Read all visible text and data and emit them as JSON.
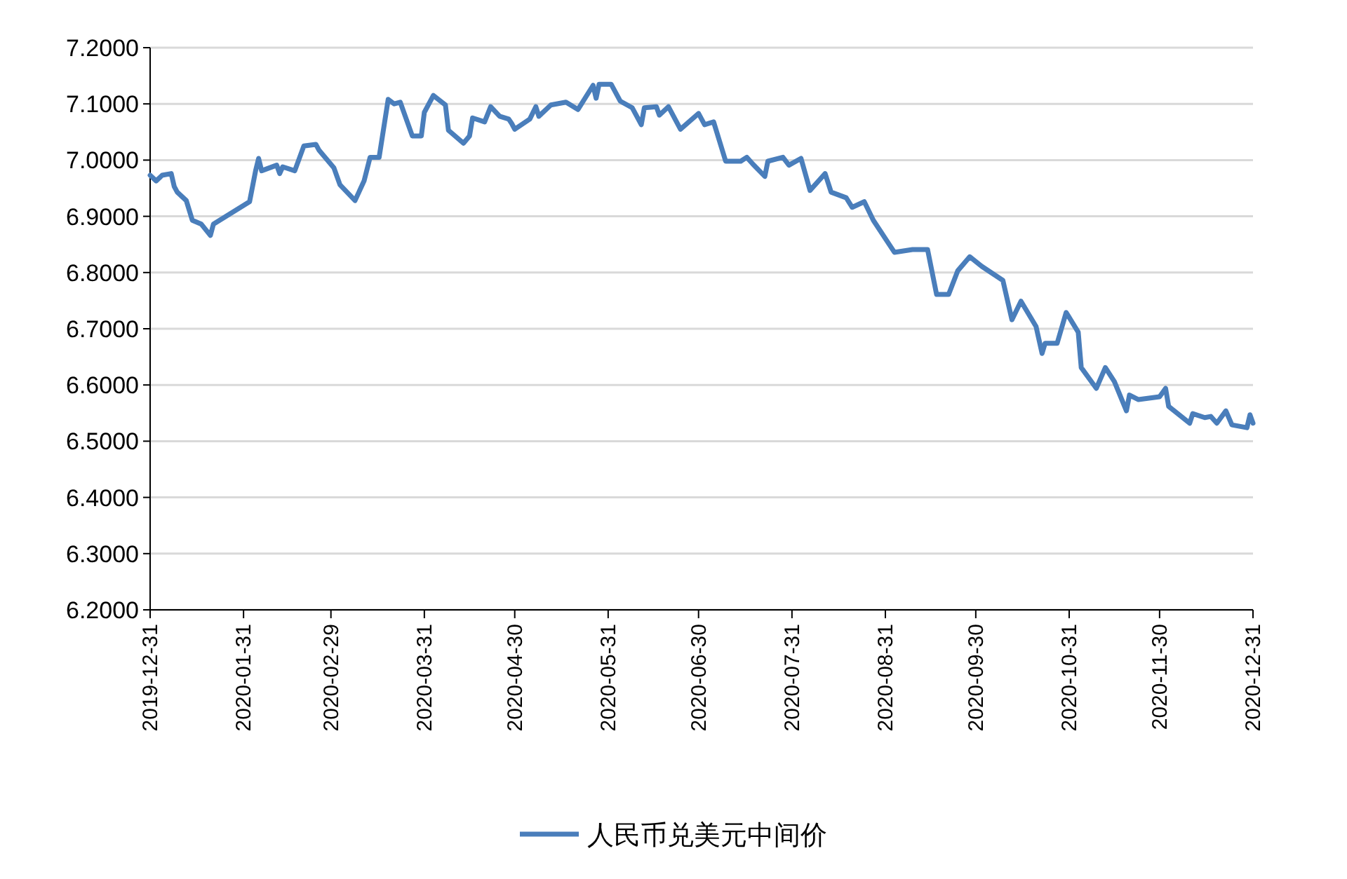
{
  "chart_data": {
    "type": "line",
    "x": [
      "2019-12-31",
      "2020-01-02",
      "2020-01-04",
      "2020-01-07",
      "2020-01-08",
      "2020-01-09",
      "2020-01-12",
      "2020-01-14",
      "2020-01-17",
      "2020-01-20",
      "2020-01-21",
      "2020-02-02",
      "2020-02-04",
      "2020-02-05",
      "2020-02-06",
      "2020-02-11",
      "2020-02-12",
      "2020-02-13",
      "2020-02-17",
      "2020-02-20",
      "2020-02-24",
      "2020-02-25",
      "2020-03-01",
      "2020-03-03",
      "2020-03-08",
      "2020-03-11",
      "2020-03-13",
      "2020-03-16",
      "2020-03-19",
      "2020-03-21",
      "2020-03-23",
      "2020-03-25",
      "2020-03-27",
      "2020-03-30",
      "2020-03-31",
      "2020-04-03",
      "2020-04-07",
      "2020-04-08",
      "2020-04-13",
      "2020-04-15",
      "2020-04-16",
      "2020-04-20",
      "2020-04-22",
      "2020-04-25",
      "2020-04-28",
      "2020-04-29",
      "2020-04-30",
      "2020-05-05",
      "2020-05-07",
      "2020-05-08",
      "2020-05-12",
      "2020-05-17",
      "2020-05-21",
      "2020-05-26",
      "2020-05-27",
      "2020-05-28",
      "2020-06-01",
      "2020-06-04",
      "2020-06-08",
      "2020-06-11",
      "2020-06-12",
      "2020-06-16",
      "2020-06-17",
      "2020-06-20",
      "2020-06-24",
      "2020-06-30",
      "2020-07-02",
      "2020-07-05",
      "2020-07-09",
      "2020-07-14",
      "2020-07-16",
      "2020-07-18",
      "2020-07-22",
      "2020-07-23",
      "2020-07-28",
      "2020-07-30",
      "2020-08-03",
      "2020-08-06",
      "2020-08-11",
      "2020-08-13",
      "2020-08-18",
      "2020-08-20",
      "2020-08-24",
      "2020-08-27",
      "2020-09-03",
      "2020-09-09",
      "2020-09-14",
      "2020-09-17",
      "2020-09-21",
      "2020-09-24",
      "2020-09-28",
      "2020-10-02",
      "2020-10-09",
      "2020-10-12",
      "2020-10-15",
      "2020-10-20",
      "2020-10-22",
      "2020-10-23",
      "2020-10-27",
      "2020-10-30",
      "2020-11-03",
      "2020-11-04",
      "2020-11-09",
      "2020-11-12",
      "2020-11-15",
      "2020-11-19",
      "2020-11-20",
      "2020-11-23",
      "2020-11-30",
      "2020-12-02",
      "2020-12-03",
      "2020-12-10",
      "2020-12-11",
      "2020-12-15",
      "2020-12-17",
      "2020-12-19",
      "2020-12-22",
      "2020-12-24",
      "2020-12-29",
      "2020-12-30",
      "2020-12-31"
    ],
    "series": [
      {
        "name": "人民币兑美元中间价",
        "color": "#4a7ebb",
        "values": [
          6.973,
          6.963,
          6.973,
          6.976,
          6.953,
          6.943,
          6.928,
          6.893,
          6.886,
          6.866,
          6.886,
          6.926,
          6.981,
          7.003,
          6.981,
          6.991,
          6.976,
          6.988,
          6.981,
          7.025,
          7.028,
          7.018,
          6.986,
          6.956,
          6.928,
          6.963,
          7.005,
          7.005,
          7.108,
          7.1,
          7.103,
          7.073,
          7.043,
          7.043,
          7.085,
          7.115,
          7.098,
          7.053,
          7.03,
          7.043,
          7.075,
          7.068,
          7.095,
          7.078,
          7.073,
          7.065,
          7.055,
          7.073,
          7.095,
          7.078,
          7.098,
          7.103,
          7.09,
          7.133,
          7.11,
          7.135,
          7.135,
          7.105,
          7.093,
          7.063,
          7.093,
          7.095,
          7.08,
          7.095,
          7.055,
          7.083,
          7.063,
          7.068,
          6.998,
          6.998,
          7.005,
          6.993,
          6.971,
          6.998,
          7.005,
          6.991,
          7.003,
          6.946,
          6.976,
          6.943,
          6.933,
          6.916,
          6.926,
          6.893,
          6.836,
          6.841,
          6.841,
          6.761,
          6.761,
          6.803,
          6.828,
          6.811,
          6.786,
          6.716,
          6.749,
          6.704,
          6.656,
          6.674,
          6.674,
          6.729,
          6.694,
          6.631,
          6.594,
          6.631,
          6.606,
          6.554,
          6.582,
          6.574,
          6.579,
          6.594,
          6.562,
          6.532,
          6.549,
          6.542,
          6.544,
          6.532,
          6.554,
          6.529,
          6.524,
          6.547,
          6.532
        ]
      }
    ],
    "xlim": [
      "2019-12-31",
      "2020-12-31"
    ],
    "xticks": [
      "2019-12-31",
      "2020-01-31",
      "2020-02-29",
      "2020-03-31",
      "2020-04-30",
      "2020-05-31",
      "2020-06-30",
      "2020-07-31",
      "2020-08-31",
      "2020-09-30",
      "2020-10-31",
      "2020-11-30",
      "2020-12-31"
    ],
    "ylim": [
      6.2,
      7.2
    ],
    "yticks": [
      {
        "value": 6.2,
        "label": "6.2000"
      },
      {
        "value": 6.3,
        "label": "6.3000"
      },
      {
        "value": 6.4,
        "label": "6.4000"
      },
      {
        "value": 6.5,
        "label": "6.5000"
      },
      {
        "value": 6.6,
        "label": "6.6000"
      },
      {
        "value": 6.7,
        "label": "6.7000"
      },
      {
        "value": 6.8,
        "label": "6.8000"
      },
      {
        "value": 6.9,
        "label": "6.9000"
      },
      {
        "value": 7.0,
        "label": "7.0000"
      },
      {
        "value": 7.1,
        "label": "7.1000"
      },
      {
        "value": 7.2,
        "label": "7.2000"
      }
    ],
    "grid": "y",
    "legend": "bottom",
    "line_style": "solid",
    "marker": "none"
  }
}
